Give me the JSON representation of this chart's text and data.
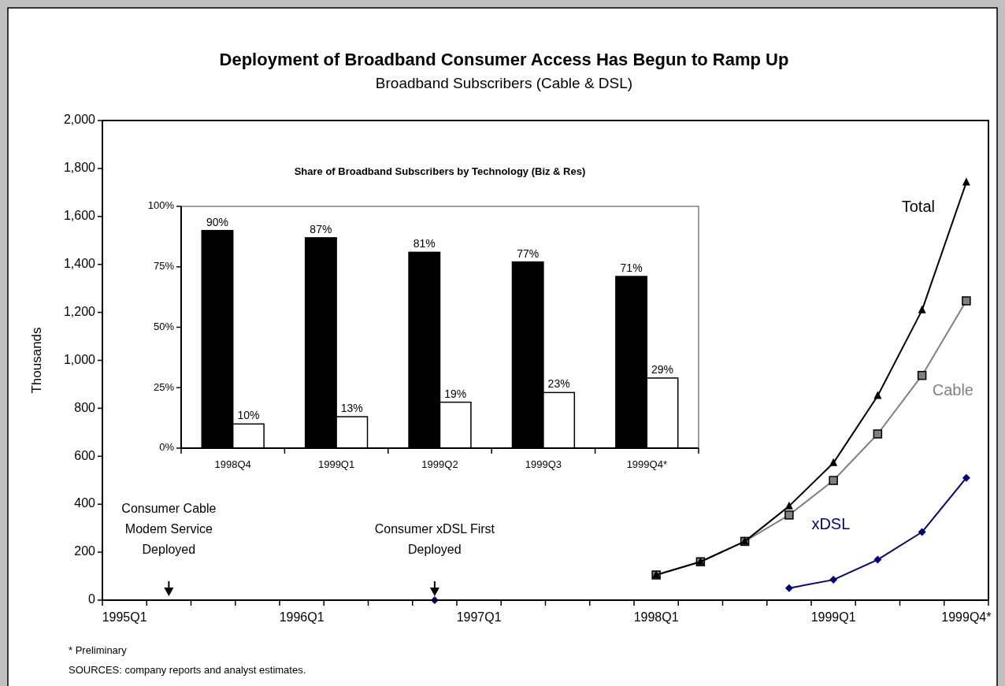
{
  "chart_data": [
    {
      "type": "line",
      "title": "Deployment of Broadband Consumer Access Has Begun to Ramp Up",
      "subtitle": "Broadband Subscribers (Cable & DSL)",
      "ylabel": "Thousands",
      "categories": [
        "1995Q1",
        null,
        null,
        null,
        "1996Q1",
        null,
        null,
        null,
        "1997Q1",
        null,
        null,
        null,
        "1998Q1",
        null,
        null,
        null,
        "1999Q1",
        null,
        null,
        "1999Q4*"
      ],
      "series": [
        {
          "name": "Cable",
          "color": "#808080",
          "marker": "square",
          "values": [
            null,
            null,
            null,
            null,
            null,
            null,
            null,
            null,
            null,
            null,
            null,
            null,
            105,
            160,
            245,
            355,
            499,
            693,
            937,
            1248
          ]
        },
        {
          "name": "Total",
          "color": "#000000",
          "marker": "triangle",
          "values": [
            null,
            null,
            null,
            null,
            null,
            null,
            null,
            null,
            null,
            null,
            null,
            null,
            105,
            160,
            245,
            392,
            572,
            852,
            1209,
            1742
          ]
        },
        {
          "name": "xDSL",
          "color": "#000080",
          "marker": "diamond",
          "values": [
            null,
            null,
            null,
            null,
            null,
            null,
            null,
            0,
            null,
            null,
            null,
            null,
            null,
            null,
            null,
            50,
            85,
            169,
            284,
            510
          ]
        }
      ],
      "ylim": [
        0,
        2000
      ],
      "yticks": [
        0,
        200,
        400,
        600,
        800,
        {
          "value": 1000,
          "label": "1,000"
        },
        {
          "value": 1200,
          "label": "1,200"
        },
        {
          "value": 1400,
          "label": "1,400"
        },
        {
          "value": 1600,
          "label": "1,600"
        },
        {
          "value": 1800,
          "label": "1,800"
        },
        {
          "value": 2000,
          "label": "2,000"
        }
      ],
      "grid": false,
      "annotations": [
        "Consumer Cable Modem Service Deployed",
        "Consumer xDSL First Deployed",
        "* Preliminary",
        "SOURCES: company reports and analyst estimates."
      ]
    },
    {
      "type": "bar",
      "title": "Share of Broadband Subscribers by Technology (Biz & Res)",
      "categories": [
        "1998Q4",
        "1999Q1",
        "1999Q2",
        "1999Q3",
        "1999Q4*"
      ],
      "series": [
        {
          "color": "#000000",
          "values": [
            90,
            87,
            81,
            77,
            71
          ],
          "value_labels": [
            "90%",
            "87%",
            "81%",
            "77%",
            "71%"
          ]
        },
        {
          "color": "#ffffff",
          "values": [
            10,
            13,
            19,
            23,
            29
          ],
          "value_labels": [
            "10%",
            "13%",
            "19%",
            "23%",
            "29%"
          ]
        }
      ],
      "ylim": [
        0,
        100
      ],
      "yticks": [
        {
          "value": 0,
          "label": "0%"
        },
        {
          "value": 25,
          "label": "25%"
        },
        {
          "value": 50,
          "label": "50%"
        },
        {
          "value": 75,
          "label": "75%"
        },
        {
          "value": 100,
          "label": "100%"
        }
      ],
      "grid": false
    }
  ]
}
